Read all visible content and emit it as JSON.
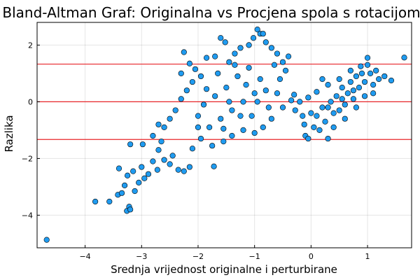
{
  "chart_data": {
    "type": "scatter",
    "title": "Bland-Altman Graf: Originalna vs Procjena spola s rotacijom",
    "xlabel": "Srednja vrijednost originalne i perturbirane",
    "ylabel": "Razlika",
    "xlim": [
      -4.85,
      1.78
    ],
    "ylim": [
      -5.15,
      2.8
    ],
    "xticks": [
      -4,
      -3,
      -2,
      -1,
      0,
      1
    ],
    "yticks": [
      -4,
      -2,
      0,
      2
    ],
    "xtick_labels": [
      "−4",
      "−3",
      "−2",
      "−1",
      "0",
      "1"
    ],
    "ytick_labels": [
      "−4",
      "−2",
      "0",
      "2"
    ],
    "grid": true,
    "legend": "none",
    "point_color": "#1f9bf0",
    "line_color": "#e8262a",
    "reference_lines": [
      1.33,
      0.0,
      -1.33
    ],
    "series": [
      {
        "values": [
          [
            -4.68,
            -4.87
          ],
          [
            -3.82,
            -3.52
          ],
          [
            -3.57,
            -3.52
          ],
          [
            -3.42,
            -3.28
          ],
          [
            -3.35,
            -3.22
          ],
          [
            -3.26,
            -3.85
          ],
          [
            -3.22,
            -3.7
          ],
          [
            -3.2,
            -3.8
          ],
          [
            -3.3,
            -2.95
          ],
          [
            -3.12,
            -3.15
          ],
          [
            -3.25,
            -2.6
          ],
          [
            -3.05,
            -2.85
          ],
          [
            -3.4,
            -2.35
          ],
          [
            -3.15,
            -2.45
          ],
          [
            -2.95,
            -2.7
          ],
          [
            -3.0,
            -2.3
          ],
          [
            -2.88,
            -2.55
          ],
          [
            -2.8,
            -2.1
          ],
          [
            -2.72,
            -2.4
          ],
          [
            -3.2,
            -1.5
          ],
          [
            -2.98,
            -1.5
          ],
          [
            -2.7,
            -1.7
          ],
          [
            -2.6,
            -2.05
          ],
          [
            -2.5,
            -2.2
          ],
          [
            -2.8,
            -1.2
          ],
          [
            -2.65,
            -1.4
          ],
          [
            -2.45,
            -1.9
          ],
          [
            -2.35,
            -2.4
          ],
          [
            -2.25,
            -2.45
          ],
          [
            -2.15,
            -2.3
          ],
          [
            -1.72,
            -2.28
          ],
          [
            -2.6,
            -0.9
          ],
          [
            -2.5,
            -0.6
          ],
          [
            -2.7,
            -0.8
          ],
          [
            -2.4,
            -0.3
          ],
          [
            -2.3,
            0.1
          ],
          [
            -2.2,
            0.4
          ],
          [
            -2.15,
            1.35
          ],
          [
            -2.3,
            1.0
          ],
          [
            -2.25,
            1.75
          ],
          [
            -2.05,
            1.15
          ],
          [
            -1.95,
            0.9
          ],
          [
            -1.85,
            1.55
          ],
          [
            -1.7,
            1.6
          ],
          [
            -1.6,
            2.25
          ],
          [
            -1.52,
            2.1
          ],
          [
            -1.45,
            1.4
          ],
          [
            -1.35,
            1.7
          ],
          [
            -1.25,
            1.9
          ],
          [
            -1.1,
            2.0
          ],
          [
            -1.02,
            2.25
          ],
          [
            -0.95,
            2.55
          ],
          [
            -0.9,
            2.4
          ],
          [
            -0.85,
            2.4
          ],
          [
            -0.8,
            2.1
          ],
          [
            -0.7,
            1.9
          ],
          [
            -0.6,
            1.7
          ],
          [
            -0.5,
            1.4
          ],
          [
            -0.45,
            1.1
          ],
          [
            -0.55,
            0.8
          ],
          [
            -0.6,
            0.3
          ],
          [
            -0.75,
            -0.2
          ],
          [
            -0.7,
            -0.6
          ],
          [
            -0.85,
            -0.9
          ],
          [
            -1.0,
            -1.1
          ],
          [
            -1.2,
            -1.0
          ],
          [
            -1.4,
            -1.2
          ],
          [
            -1.55,
            -1.4
          ],
          [
            -1.75,
            -1.55
          ],
          [
            -1.95,
            -1.3
          ],
          [
            -2.1,
            -1.65
          ],
          [
            -1.8,
            -0.9
          ],
          [
            -1.6,
            -0.6
          ],
          [
            -1.4,
            -0.3
          ],
          [
            -1.2,
            0.0
          ],
          [
            -1.0,
            0.3
          ],
          [
            -0.9,
            0.8
          ],
          [
            -1.1,
            1.2
          ],
          [
            -1.3,
            0.9
          ],
          [
            -1.5,
            0.5
          ],
          [
            -1.7,
            0.2
          ],
          [
            -1.9,
            -0.1
          ],
          [
            -2.0,
            -0.5
          ],
          [
            -2.1,
            0.7
          ],
          [
            -1.65,
            1.0
          ],
          [
            -1.35,
            1.3
          ],
          [
            -1.15,
            0.6
          ],
          [
            -0.95,
            0.0
          ],
          [
            -1.25,
            -0.5
          ],
          [
            -1.45,
            0.0
          ],
          [
            -1.85,
            0.45
          ],
          [
            -2.0,
            -0.9
          ],
          [
            -1.55,
            -0.95
          ],
          [
            -1.05,
            -0.5
          ],
          [
            -0.8,
            0.4
          ],
          [
            -0.65,
            1.3
          ],
          [
            -0.4,
            1.6
          ],
          [
            -0.35,
            0.05
          ],
          [
            -0.5,
            -0.2
          ],
          [
            -0.3,
            0.25
          ],
          [
            -0.12,
            -0.8
          ],
          [
            -0.1,
            -1.2
          ],
          [
            -0.05,
            -1.3
          ],
          [
            0.0,
            -0.4
          ],
          [
            0.05,
            -0.9
          ],
          [
            0.1,
            -0.5
          ],
          [
            0.15,
            -1.0
          ],
          [
            0.2,
            -0.2
          ],
          [
            0.25,
            -0.7
          ],
          [
            0.3,
            -1.3
          ],
          [
            0.35,
            0.0
          ],
          [
            0.4,
            -0.4
          ],
          [
            0.45,
            0.2
          ],
          [
            0.5,
            -0.3
          ],
          [
            0.55,
            0.5
          ],
          [
            0.6,
            -0.1
          ],
          [
            0.65,
            0.3
          ],
          [
            0.7,
            0.7
          ],
          [
            0.75,
            0.1
          ],
          [
            0.8,
            0.9
          ],
          [
            0.85,
            0.5
          ],
          [
            0.9,
            1.0
          ],
          [
            0.95,
            0.7
          ],
          [
            1.0,
            1.3
          ],
          [
            1.05,
            1.0
          ],
          [
            1.1,
            0.6
          ],
          [
            1.15,
            1.1
          ],
          [
            1.2,
            0.8
          ],
          [
            1.3,
            0.9
          ],
          [
            1.42,
            0.75
          ],
          [
            1.0,
            1.55
          ],
          [
            1.65,
            1.56
          ],
          [
            0.5,
            0.8
          ],
          [
            0.3,
            0.6
          ],
          [
            0.1,
            0.35
          ],
          [
            -0.05,
            0.15
          ],
          [
            -0.2,
            0.0
          ],
          [
            0.4,
            -0.9
          ],
          [
            0.6,
            -0.6
          ],
          [
            0.8,
            -0.2
          ],
          [
            0.95,
            0.2
          ],
          [
            1.1,
            0.3
          ],
          [
            -0.15,
            -0.5
          ],
          [
            0.2,
            0.8
          ],
          [
            0.7,
            1.1
          ],
          [
            0.88,
            1.25
          ],
          [
            0.3,
            -0.2
          ],
          [
            0.55,
            0.1
          ],
          [
            0.75,
            0.4
          ],
          [
            -0.28,
            -0.3
          ]
        ]
      }
    ]
  }
}
